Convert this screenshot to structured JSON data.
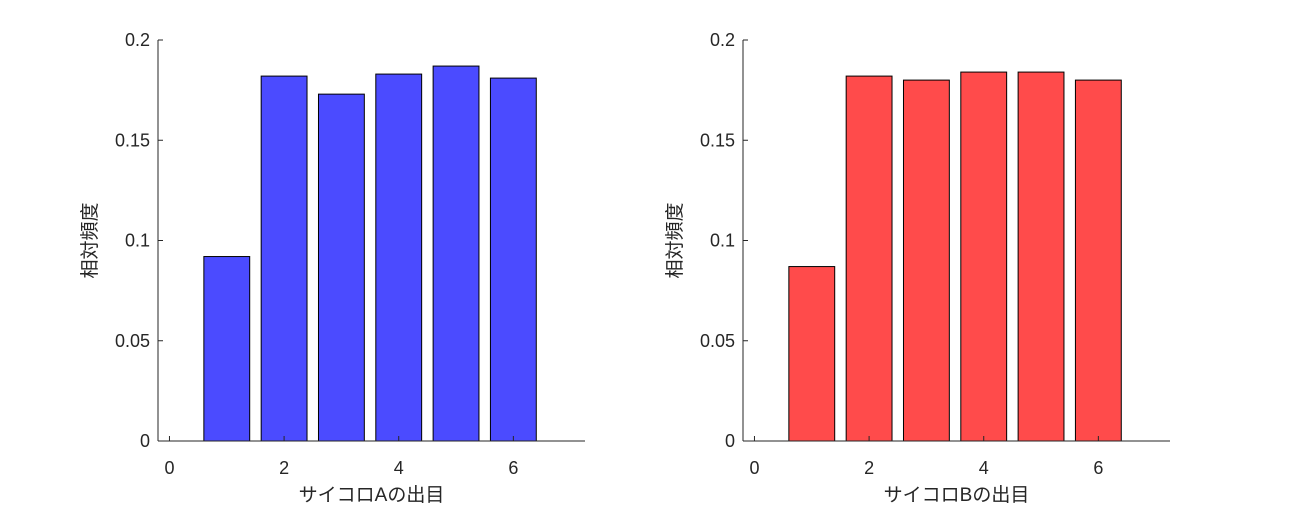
{
  "chart_data": [
    {
      "type": "bar",
      "x": [
        1,
        2,
        3,
        4,
        5,
        6
      ],
      "values": [
        0.092,
        0.182,
        0.173,
        0.183,
        0.187,
        0.181
      ],
      "color": "#4B4BFF",
      "xlabel": "サイコロAの出目",
      "ylabel": "相対頻度",
      "xlim": [
        -0.2,
        7.25
      ],
      "ylim": [
        0,
        0.2
      ],
      "xticks": [
        0,
        2,
        4,
        6
      ],
      "xtick_labels": [
        "0",
        "2",
        "4",
        "6"
      ],
      "yticks": [
        0,
        0.05,
        0.1,
        0.15,
        0.2
      ],
      "ytick_labels": [
        "0",
        "0.05",
        "0.1",
        "0.15",
        "0.2"
      ],
      "grid": false
    },
    {
      "type": "bar",
      "x": [
        1,
        2,
        3,
        4,
        5,
        6
      ],
      "values": [
        0.087,
        0.182,
        0.18,
        0.184,
        0.184,
        0.18
      ],
      "color": "#FF4B4B",
      "xlabel": "サイコロBの出目",
      "ylabel": "相対頻度",
      "xlim": [
        -0.2,
        7.25
      ],
      "ylim": [
        0,
        0.2
      ],
      "xticks": [
        0,
        2,
        4,
        6
      ],
      "xtick_labels": [
        "0",
        "2",
        "4",
        "6"
      ],
      "yticks": [
        0,
        0.05,
        0.1,
        0.15,
        0.2
      ],
      "ytick_labels": [
        "0",
        "0.05",
        "0.1",
        "0.15",
        "0.2"
      ],
      "grid": false
    }
  ]
}
